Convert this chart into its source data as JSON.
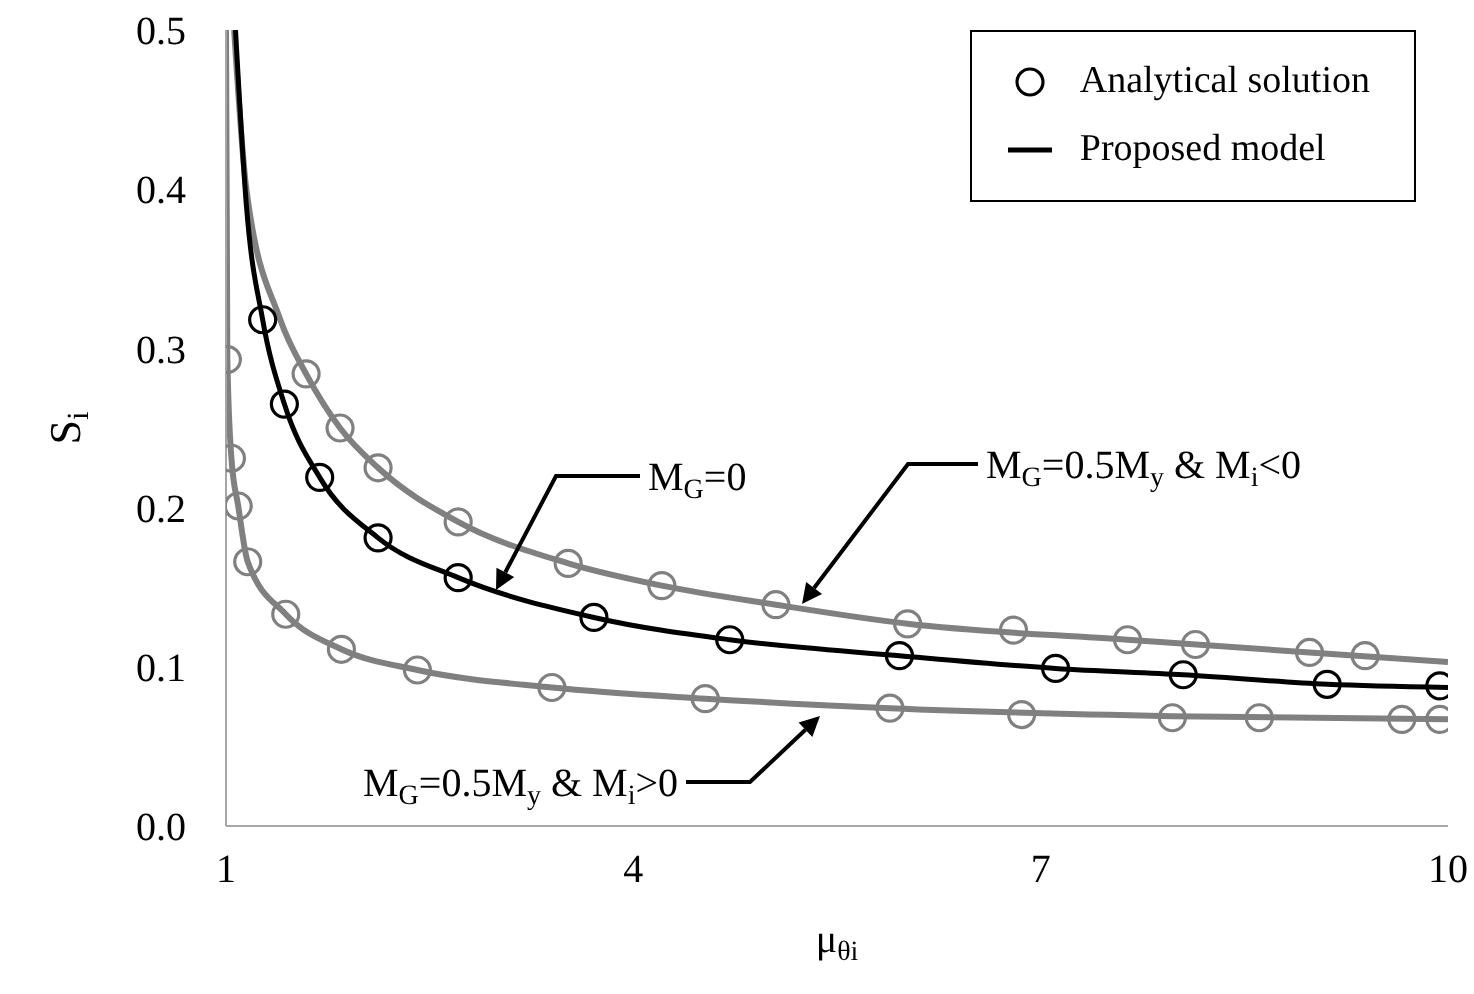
{
  "chart_data": {
    "type": "line",
    "xlabel": "μ$_{θi}$",
    "ylabel": "S$_{i}$",
    "xlim": [
      1,
      10
    ],
    "xticks": [
      1,
      4,
      7,
      10
    ],
    "ylim": [
      0,
      0.5
    ],
    "yticks": [
      {
        "value": 0,
        "label": "0.0"
      },
      0.1,
      0.2,
      0.3,
      0.4,
      0.5
    ],
    "grid": false,
    "legend": "top right",
    "series": [
      {
        "type": "scatter",
        "color": "#808080",
        "marker": "circle",
        "x": [
          1.59,
          1.84,
          2.12,
          2.71,
          3.52,
          4.21,
          5.05,
          6.02,
          6.8,
          7.64,
          8.14,
          8.98,
          9.39
        ],
        "values": [
          0.284,
          0.25,
          0.225,
          0.191,
          0.165,
          0.151,
          0.139,
          0.127,
          0.123,
          0.117,
          0.114,
          0.109,
          0.107
        ]
      },
      {
        "type": "scatter",
        "name": "Analytical solution",
        "color": "#000000",
        "marker": "circle",
        "x": [
          1.27,
          1.43,
          1.69,
          2.12,
          2.71,
          3.71,
          4.71,
          5.96,
          7.11,
          8.05,
          9.11,
          9.94
        ],
        "values": [
          0.318,
          0.265,
          0.219,
          0.181,
          0.156,
          0.131,
          0.117,
          0.107,
          0.099,
          0.095,
          0.089,
          0.088
        ]
      },
      {
        "type": "scatter",
        "color": "#808080",
        "marker": "circle",
        "x": [
          1.01,
          1.04,
          1.09,
          1.16,
          1.44,
          1.85,
          2.41,
          3.4,
          4.53,
          5.89,
          6.86,
          7.97,
          8.61,
          9.66,
          9.94
        ],
        "values": [
          0.293,
          0.231,
          0.201,
          0.166,
          0.133,
          0.111,
          0.098,
          0.087,
          0.08,
          0.074,
          0.07,
          0.068,
          0.068,
          0.067,
          0.067
        ]
      },
      {
        "color": "#808080",
        "marker": "none",
        "x": [
          1.06,
          1.15,
          1.4,
          1.59,
          1.84,
          2.12,
          2.71,
          3.52,
          4.21,
          5.05,
          6.02,
          7.64,
          8.98,
          10
        ],
        "values": [
          0.5,
          0.4,
          0.318,
          0.284,
          0.25,
          0.225,
          0.191,
          0.165,
          0.151,
          0.139,
          0.127,
          0.117,
          0.109,
          0.103
        ]
      },
      {
        "name": "Proposed model",
        "color": "#000000",
        "marker": "none",
        "x": [
          1.07,
          1.15,
          1.27,
          1.43,
          1.69,
          2.12,
          2.71,
          3.71,
          4.71,
          5.96,
          7.11,
          8.05,
          9.11,
          10
        ],
        "values": [
          0.5,
          0.39,
          0.318,
          0.265,
          0.219,
          0.181,
          0.156,
          0.131,
          0.117,
          0.107,
          0.099,
          0.095,
          0.089,
          0.087
        ]
      },
      {
        "color": "#808080",
        "marker": "none",
        "x": [
          1.0,
          1.01,
          1.04,
          1.09,
          1.16,
          1.44,
          1.85,
          2.41,
          3.4,
          4.53,
          5.89,
          7.97,
          10
        ],
        "values": [
          0.5,
          0.293,
          0.231,
          0.201,
          0.166,
          0.133,
          0.111,
          0.098,
          0.087,
          0.08,
          0.074,
          0.069,
          0.067
        ]
      }
    ],
    "annotations": [
      "M$_{G}$=0",
      "M$_{G}$=0.5M$_{y}$ & M$_{i}$<0",
      "M$_{G}$=0.5M$_{y}$ & M$_{i}$>0"
    ]
  }
}
